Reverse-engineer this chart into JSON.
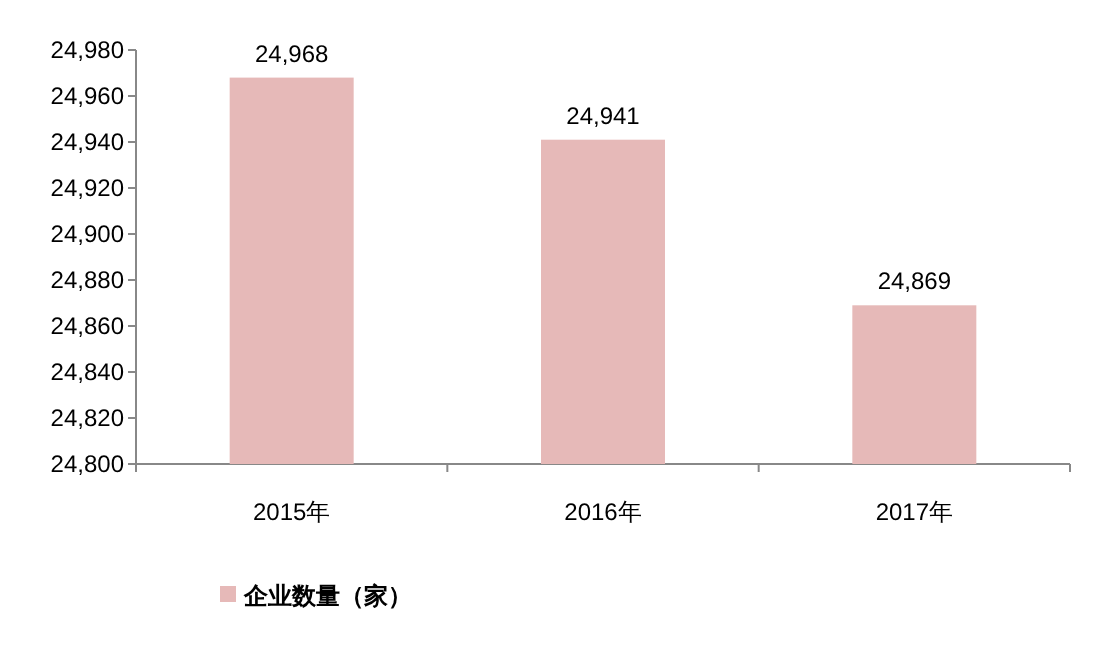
{
  "chart_data": {
    "type": "bar",
    "categories": [
      "2015年",
      "2016年",
      "2017年"
    ],
    "series": [
      {
        "name": "企业数量（家）",
        "color": "#e6b9b8",
        "values": [
          24968,
          24941,
          24869
        ],
        "value_labels": [
          "24,968",
          "24,941",
          "24,869"
        ]
      }
    ],
    "ylim": [
      24800,
      24980
    ],
    "yticks": [
      {
        "value": 24800,
        "label": "24,800"
      },
      {
        "value": 24820,
        "label": "24,820"
      },
      {
        "value": 24840,
        "label": "24,840"
      },
      {
        "value": 24860,
        "label": "24,860"
      },
      {
        "value": 24880,
        "label": "24,880"
      },
      {
        "value": 24900,
        "label": "24,900"
      },
      {
        "value": 24920,
        "label": "24,920"
      },
      {
        "value": 24940,
        "label": "24,940"
      },
      {
        "value": 24960,
        "label": "24,960"
      },
      {
        "value": 24980,
        "label": "24,980"
      }
    ],
    "grid": false,
    "legend": "bottom"
  }
}
